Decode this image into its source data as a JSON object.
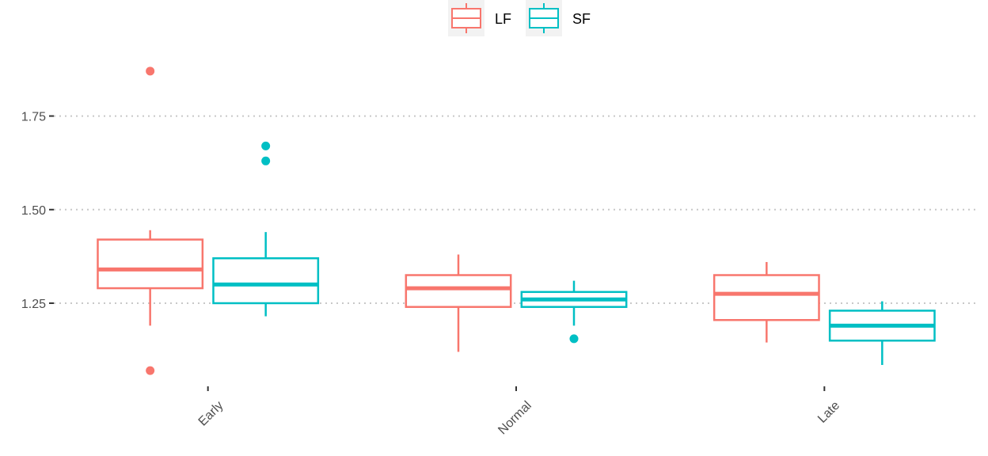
{
  "chart_data": {
    "type": "boxplot",
    "categories": [
      "Early",
      "Normal",
      "Late"
    ],
    "legend_position": "top",
    "grid": "dotted horizontal major gridlines",
    "y_ticks": [
      1.25,
      1.5,
      1.75
    ],
    "y_tick_labels": [
      "1.25",
      "1.50",
      "1.75"
    ],
    "ylim": [
      1.03,
      1.95
    ],
    "xlabel": "",
    "ylabel": "",
    "series": [
      {
        "name": "LF",
        "color": "#F8766D",
        "boxes": [
          {
            "category": "Early",
            "whisker_low": 1.19,
            "q1": 1.29,
            "median": 1.34,
            "q3": 1.42,
            "whisker_high": 1.445,
            "outliers": [
              1.07,
              1.87
            ]
          },
          {
            "category": "Normal",
            "whisker_low": 1.12,
            "q1": 1.24,
            "median": 1.29,
            "q3": 1.325,
            "whisker_high": 1.38,
            "outliers": []
          },
          {
            "category": "Late",
            "whisker_low": 1.145,
            "q1": 1.205,
            "median": 1.275,
            "q3": 1.325,
            "whisker_high": 1.36,
            "outliers": []
          }
        ]
      },
      {
        "name": "SF",
        "color": "#00BFC4",
        "boxes": [
          {
            "category": "Early",
            "whisker_low": 1.215,
            "q1": 1.25,
            "median": 1.3,
            "q3": 1.37,
            "whisker_high": 1.44,
            "outliers": [
              1.63,
              1.67
            ]
          },
          {
            "category": "Normal",
            "whisker_low": 1.19,
            "q1": 1.24,
            "median": 1.26,
            "q3": 1.28,
            "whisker_high": 1.31,
            "outliers": [
              1.155
            ]
          },
          {
            "category": "Late",
            "whisker_low": 1.085,
            "q1": 1.15,
            "median": 1.19,
            "q3": 1.23,
            "whisker_high": 1.255,
            "outliers": []
          }
        ]
      }
    ]
  }
}
